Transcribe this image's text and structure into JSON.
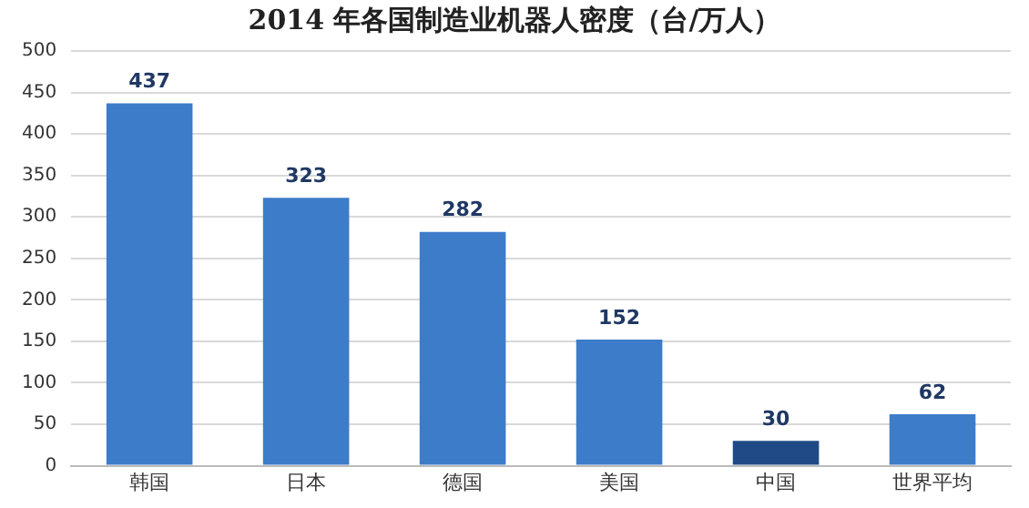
{
  "chart_data": {
    "type": "bar",
    "title": "2014 年各国制造业机器人密度（台/万人）",
    "categories": [
      "韩国",
      "日本",
      "德国",
      "美国",
      "中国",
      "世界平均"
    ],
    "values": [
      437,
      323,
      282,
      152,
      30,
      62
    ],
    "colors": [
      "#3d7cc9",
      "#3d7cc9",
      "#3d7cc9",
      "#3d7cc9",
      "#1f4a86",
      "#3d7cc9"
    ],
    "ylim": [
      0,
      500
    ],
    "yticks": [
      0,
      50,
      100,
      150,
      200,
      250,
      300,
      350,
      400,
      450,
      500
    ],
    "grid": "y",
    "data_labels": true,
    "legend": false
  }
}
